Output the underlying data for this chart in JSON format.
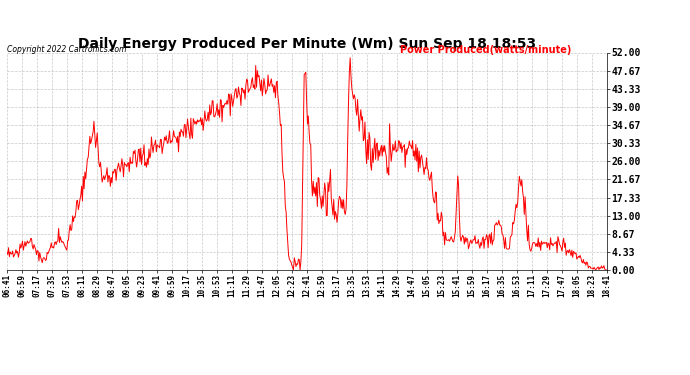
{
  "title": "Daily Energy Produced Per Minute (Wm) Sun Sep 18 18:53",
  "copyright_text": "Copyright 2022 Cartronics.com",
  "legend_text": "Power Produced(watts/minute)",
  "y_min": 0.0,
  "y_max": 52.0,
  "y_ticks": [
    0.0,
    4.33,
    8.67,
    13.0,
    17.33,
    21.67,
    26.0,
    30.33,
    34.67,
    39.0,
    43.33,
    47.67,
    52.0
  ],
  "background_color": "#FFFFFF",
  "plot_bg_color": "#FFFFFF",
  "line_color": "#FF0000",
  "grid_color": "#BBBBBB",
  "title_color": "#000000",
  "copyright_color": "#000000",
  "legend_color": "#FF0000",
  "x_labels": [
    "06:41",
    "06:59",
    "07:17",
    "07:35",
    "07:53",
    "08:11",
    "08:29",
    "08:47",
    "09:05",
    "09:23",
    "09:41",
    "09:59",
    "10:17",
    "10:35",
    "10:53",
    "11:11",
    "11:29",
    "11:47",
    "12:05",
    "12:23",
    "12:41",
    "12:59",
    "13:17",
    "13:35",
    "13:53",
    "14:11",
    "14:29",
    "14:47",
    "15:05",
    "15:23",
    "15:41",
    "15:59",
    "16:17",
    "16:35",
    "16:53",
    "17:11",
    "17:29",
    "17:47",
    "18:05",
    "18:23",
    "18:41"
  ]
}
